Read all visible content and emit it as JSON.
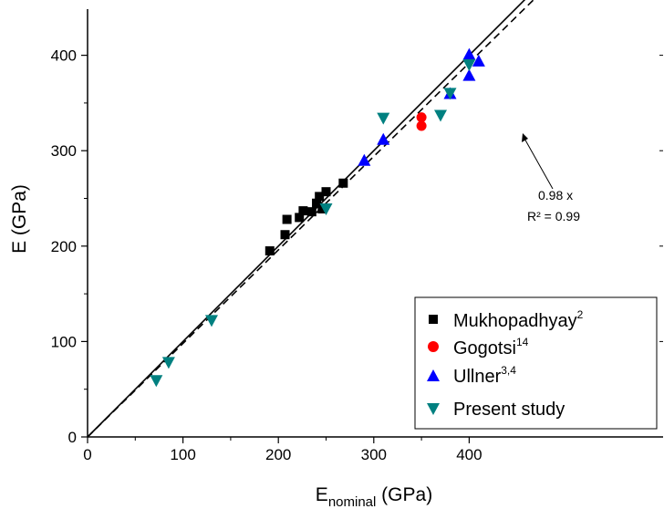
{
  "chart_data": {
    "type": "scatter",
    "xlabel": {
      "main": "E",
      "sub": "nominal",
      "unit": " (GPa)"
    },
    "ylabel": "E (GPa)",
    "xlim": [
      0,
      440
    ],
    "ylim": [
      0,
      440
    ],
    "xticks": [
      0,
      100,
      200,
      300,
      400
    ],
    "yticks": [
      0,
      100,
      200,
      300,
      400
    ],
    "grid": false,
    "legend_position": "bottom-right",
    "series": [
      {
        "name": "Mukhopadhyay",
        "sup": "2",
        "marker": "square",
        "color": "#000000",
        "points": [
          [
            191,
            195
          ],
          [
            207,
            212
          ],
          [
            209,
            228
          ],
          [
            222,
            230
          ],
          [
            226,
            237
          ],
          [
            235,
            236
          ],
          [
            240,
            245
          ],
          [
            243,
            252
          ],
          [
            246,
            239
          ],
          [
            250,
            257
          ],
          [
            268,
            266
          ]
        ]
      },
      {
        "name": "Gogotsi",
        "sup": "14",
        "marker": "circle",
        "color": "#ff0000",
        "points": [
          [
            350,
            335
          ],
          [
            350,
            326
          ]
        ]
      },
      {
        "name": "Ullner",
        "sup": "3,4",
        "marker": "triangle-up",
        "color": "#0000ff",
        "points": [
          [
            290,
            289
          ],
          [
            310,
            311
          ],
          [
            380,
            359
          ],
          [
            400,
            400
          ],
          [
            400,
            378
          ],
          [
            410,
            393
          ]
        ]
      },
      {
        "name": "Present study",
        "sup": "",
        "marker": "triangle-down",
        "color": "#008080",
        "points": [
          [
            72,
            60
          ],
          [
            85,
            79
          ],
          [
            130,
            123
          ],
          [
            250,
            240
          ],
          [
            310,
            335
          ],
          [
            370,
            338
          ],
          [
            380,
            361
          ],
          [
            400,
            391
          ]
        ]
      }
    ],
    "lines": [
      {
        "label": "y = x",
        "style": "solid",
        "slope": 1.0
      },
      {
        "label": "0.98 x",
        "style": "dashed",
        "slope": 0.98
      }
    ],
    "annotation": {
      "text": [
        "0.98 x",
        "R² = 0.99"
      ],
      "points_to": [
        328,
        318
      ]
    }
  }
}
